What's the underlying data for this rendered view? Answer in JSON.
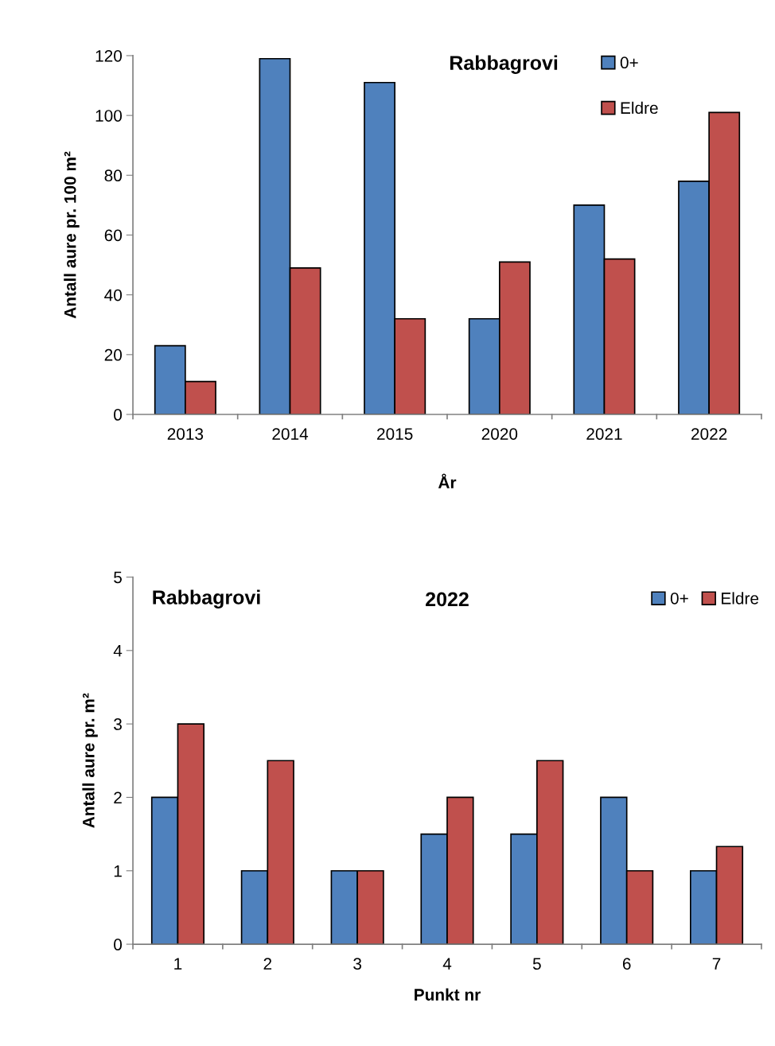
{
  "chart_data": [
    {
      "type": "bar",
      "title": "Rabbagrovi",
      "xlabel": "År",
      "ylabel": "Antall aure pr. 100 m²",
      "categories": [
        "2013",
        "2014",
        "2015",
        "2020",
        "2021",
        "2022"
      ],
      "series": [
        {
          "name": "0+",
          "color": "#4f81bd",
          "values": [
            23,
            119,
            111,
            32,
            70,
            78
          ]
        },
        {
          "name": "Eldre",
          "color": "#c0504d",
          "values": [
            11,
            49,
            32,
            51,
            52,
            101
          ]
        }
      ],
      "ylim": [
        0,
        120
      ],
      "yticks": [
        0,
        20,
        40,
        60,
        80,
        100,
        120
      ],
      "grid": false,
      "legend": "top right"
    },
    {
      "type": "bar",
      "title": "2022",
      "annotations": [
        "Rabbagrovi"
      ],
      "xlabel": "Punkt nr",
      "ylabel": "Antall aure pr. m²",
      "categories": [
        "1",
        "2",
        "3",
        "4",
        "5",
        "6",
        "7"
      ],
      "series": [
        {
          "name": "0+",
          "color": "#4f81bd",
          "values": [
            2,
            1,
            1,
            1.5,
            1.5,
            2,
            1
          ]
        },
        {
          "name": "Eldre",
          "color": "#c0504d",
          "values": [
            3,
            2.5,
            1,
            2,
            2.5,
            1,
            1.33
          ]
        }
      ],
      "ylim": [
        0,
        5
      ],
      "yticks": [
        0,
        1,
        2,
        3,
        4,
        5
      ],
      "grid": false,
      "legend": "top right"
    }
  ]
}
